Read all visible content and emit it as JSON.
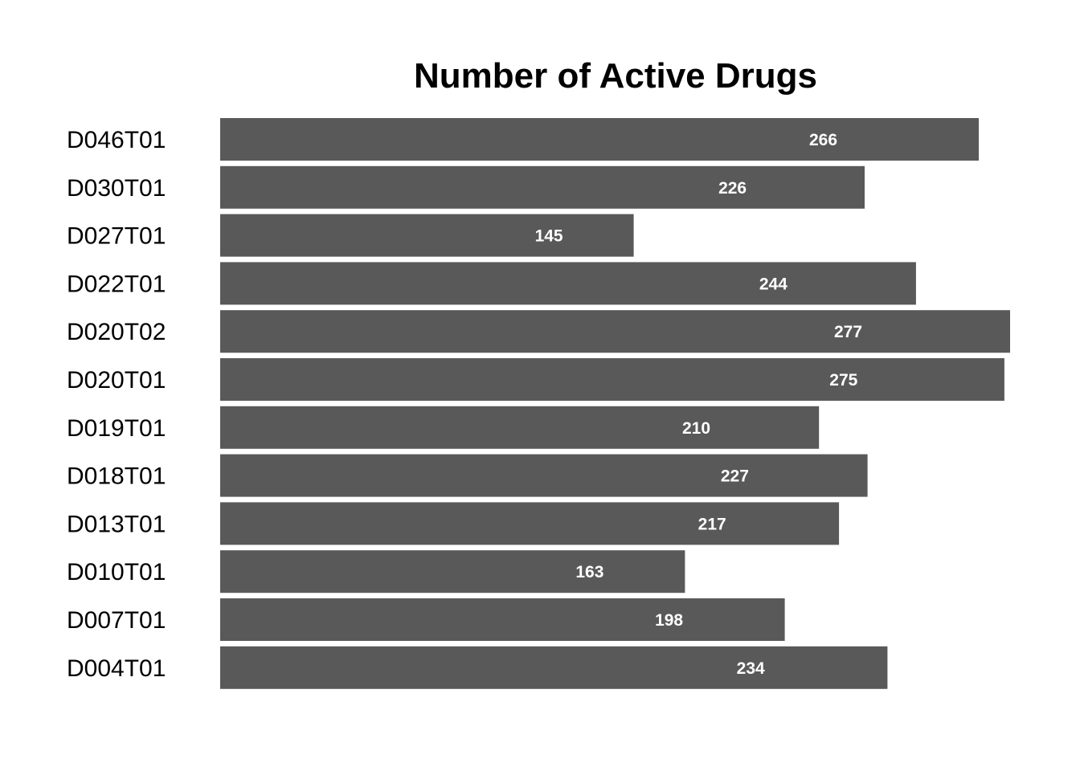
{
  "chart_data": {
    "type": "bar",
    "orientation": "horizontal",
    "title": "Number of Active Drugs",
    "xlabel": "",
    "ylabel": "",
    "categories": [
      "D046T01",
      "D030T01",
      "D027T01",
      "D022T01",
      "D020T02",
      "D020T01",
      "D019T01",
      "D018T01",
      "D013T01",
      "D010T01",
      "D007T01",
      "D004T01"
    ],
    "values": [
      266,
      226,
      145,
      244,
      277,
      275,
      210,
      227,
      217,
      163,
      198,
      234
    ],
    "xlim": [
      0,
      277
    ],
    "grid": false,
    "legend": "none",
    "bar_color": "#595959",
    "label_color": "#ffffff"
  }
}
